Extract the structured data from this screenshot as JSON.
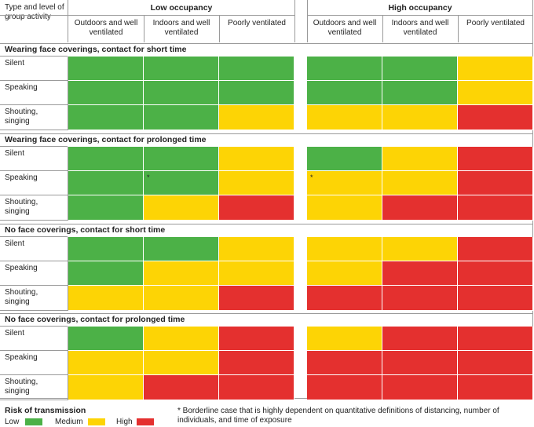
{
  "header": {
    "corner_label": "Type and level of group activity",
    "groups": [
      "Low occupancy",
      "High occupancy"
    ],
    "columns": [
      "Outdoors and well ventilated",
      "Indoors and well ventilated",
      "Poorly ventilated",
      "Outdoors and well ventilated",
      "Indoors and well ventilated",
      "Poorly ventilated"
    ]
  },
  "colors": {
    "low": "#4cb147",
    "medium": "#fdd405",
    "high": "#e4302f"
  },
  "sections": [
    {
      "title": "Wearing face coverings, contact for short time",
      "rows": [
        {
          "label": "Silent",
          "risk": [
            "low",
            "low",
            "low",
            "low",
            "low",
            "medium"
          ],
          "marks": [
            "",
            "",
            "",
            "",
            "",
            ""
          ]
        },
        {
          "label": "Speaking",
          "risk": [
            "low",
            "low",
            "low",
            "low",
            "low",
            "medium"
          ],
          "marks": [
            "",
            "",
            "",
            "",
            "",
            ""
          ]
        },
        {
          "label": "Shouting, singing",
          "risk": [
            "low",
            "low",
            "medium",
            "medium",
            "medium",
            "high"
          ],
          "marks": [
            "",
            "",
            "",
            "",
            "",
            ""
          ]
        }
      ]
    },
    {
      "title": "Wearing face coverings, contact for prolonged time",
      "rows": [
        {
          "label": "Silent",
          "risk": [
            "low",
            "low",
            "medium",
            "low",
            "medium",
            "high"
          ],
          "marks": [
            "",
            "",
            "",
            "",
            "",
            ""
          ]
        },
        {
          "label": "Speaking",
          "risk": [
            "low",
            "low",
            "medium",
            "medium",
            "medium",
            "high"
          ],
          "marks": [
            "",
            "*",
            "",
            "*",
            "",
            ""
          ]
        },
        {
          "label": "Shouting, singing",
          "risk": [
            "low",
            "medium",
            "high",
            "medium",
            "high",
            "high"
          ],
          "marks": [
            "",
            "",
            "",
            "",
            "",
            ""
          ]
        }
      ]
    },
    {
      "title": "No face coverings, contact for short time",
      "rows": [
        {
          "label": "Silent",
          "risk": [
            "low",
            "low",
            "medium",
            "medium",
            "medium",
            "high"
          ],
          "marks": [
            "",
            "",
            "",
            "",
            "",
            ""
          ]
        },
        {
          "label": "Speaking",
          "risk": [
            "low",
            "medium",
            "medium",
            "medium",
            "high",
            "high"
          ],
          "marks": [
            "",
            "",
            "",
            "",
            "",
            ""
          ]
        },
        {
          "label": "Shouting, singing",
          "risk": [
            "medium",
            "medium",
            "high",
            "high",
            "high",
            "high"
          ],
          "marks": [
            "",
            "",
            "",
            "",
            "",
            ""
          ]
        }
      ]
    },
    {
      "title": "No face coverings, contact for prolonged time",
      "rows": [
        {
          "label": "Silent",
          "risk": [
            "low",
            "medium",
            "high",
            "medium",
            "high",
            "high"
          ],
          "marks": [
            "",
            "",
            "",
            "",
            "",
            ""
          ]
        },
        {
          "label": "Speaking",
          "risk": [
            "medium",
            "medium",
            "high",
            "high",
            "high",
            "high"
          ],
          "marks": [
            "",
            "",
            "",
            "",
            "",
            ""
          ]
        },
        {
          "label": "Shouting, singing",
          "risk": [
            "medium",
            "high",
            "high",
            "high",
            "high",
            "high"
          ],
          "marks": [
            "",
            "",
            "",
            "",
            "",
            ""
          ]
        }
      ]
    }
  ],
  "legend": {
    "title": "Risk of transmission",
    "items": [
      {
        "label": "Low",
        "color": "#4cb147"
      },
      {
        "label": "Medium",
        "color": "#fdd405"
      },
      {
        "label": "High",
        "color": "#e4302f"
      }
    ]
  },
  "footnote": "* Borderline case that is highly dependent on quantitative definitions of distancing, number of individuals, and time of exposure"
}
